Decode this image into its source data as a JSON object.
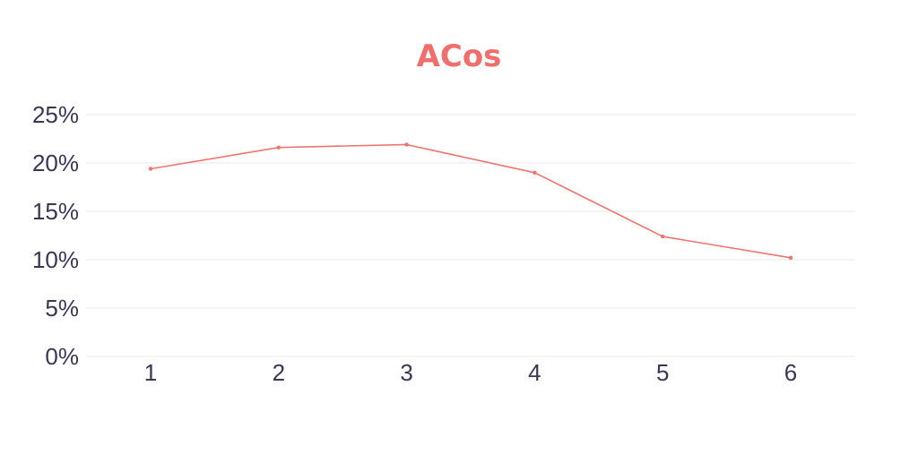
{
  "chart_data": {
    "type": "line",
    "title": "ACos",
    "xlabel": "",
    "ylabel": "",
    "categories": [
      "1",
      "2",
      "3",
      "4",
      "5",
      "6"
    ],
    "series": [
      {
        "values": [
          19.4,
          21.6,
          21.9,
          19.0,
          12.4,
          10.2
        ]
      }
    ],
    "y_tick_values": [
      0,
      5,
      10,
      15,
      20,
      25
    ],
    "y_tick_labels": [
      "0%",
      "5%",
      "10%",
      "15%",
      "20%",
      "25%"
    ],
    "ylim": [
      0,
      25
    ],
    "grid": true,
    "legend": "none",
    "colors": {
      "title": "#ef6f6c",
      "line": "#ef7470",
      "tick_text": "#3b3557",
      "grid": "#e8e8e8"
    }
  }
}
